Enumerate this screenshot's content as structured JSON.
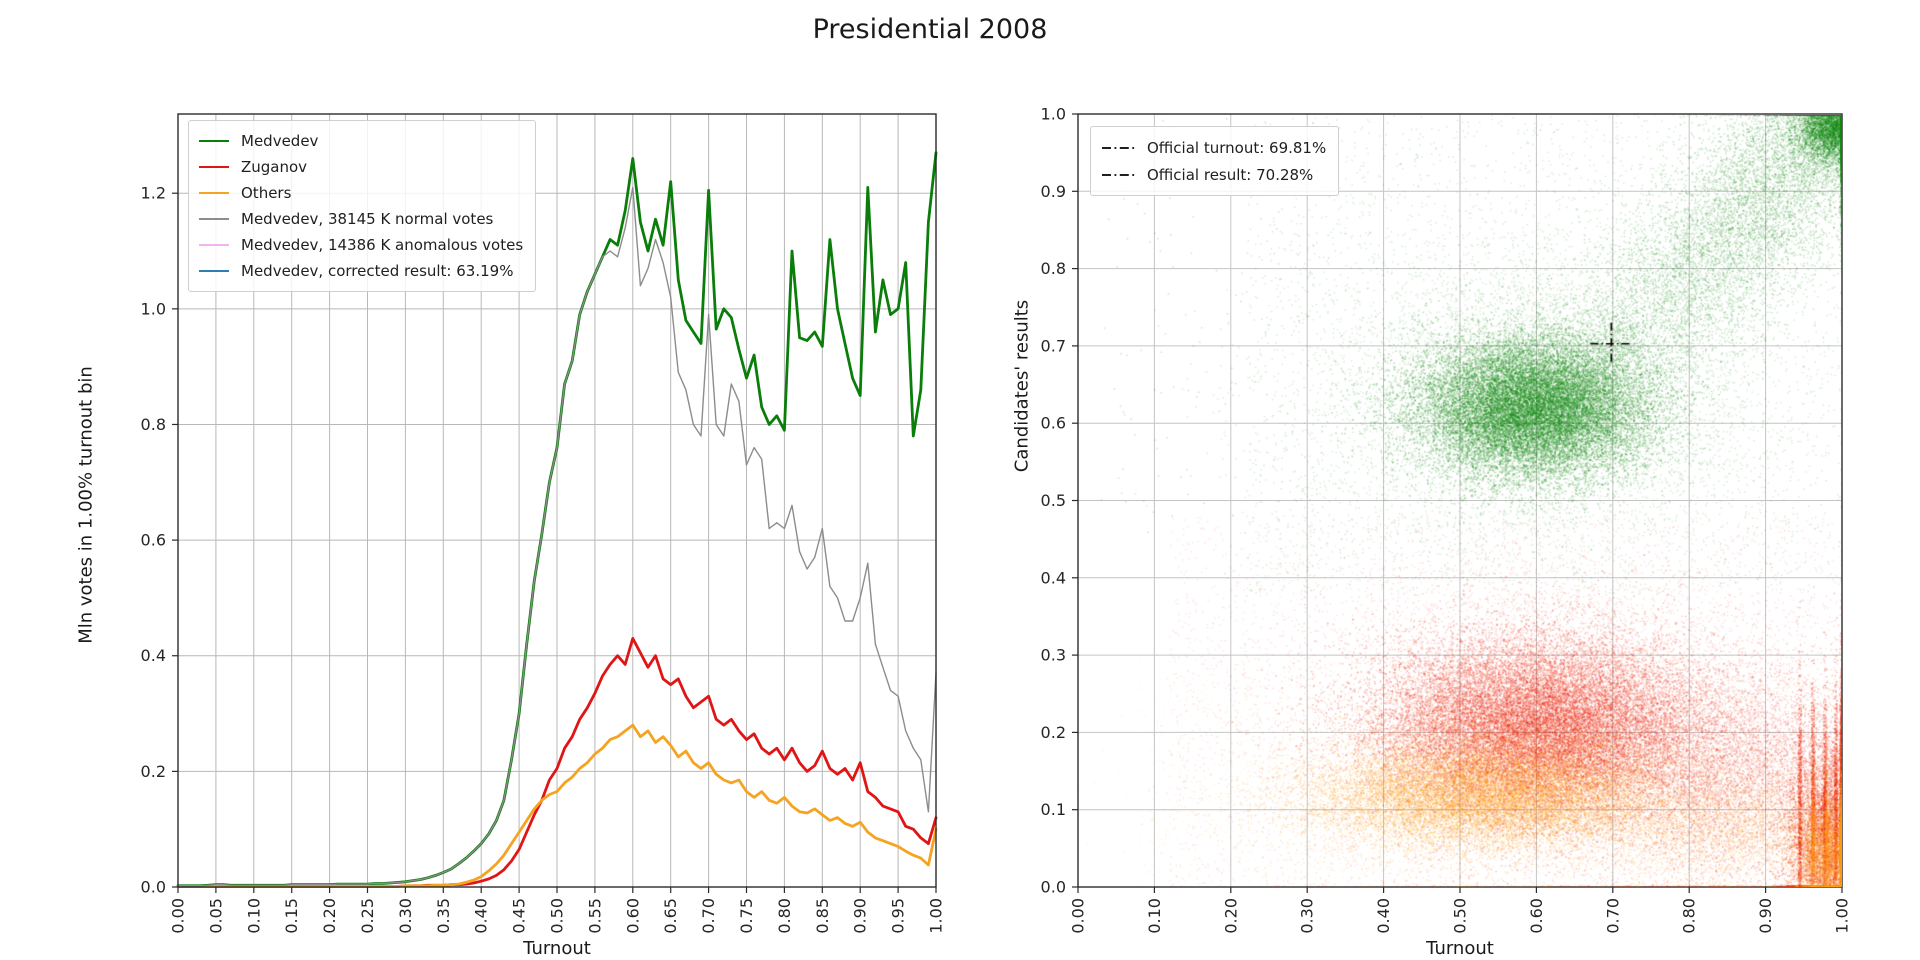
{
  "title": "Presidential 2008",
  "chart_data": [
    {
      "type": "line",
      "xlabel": "Turnout",
      "ylabel": "Mln votes in 1.00% turnout bin",
      "xlim": [
        0.0,
        1.0
      ],
      "ylim": [
        0.0,
        1.337
      ],
      "grid": true,
      "legend_position": "upper left",
      "x_step": 0.01,
      "x_start": 0.0,
      "x_tick_labels": [
        "0.00",
        "0.05",
        "0.10",
        "0.15",
        "0.20",
        "0.25",
        "0.30",
        "0.35",
        "0.40",
        "0.45",
        "0.50",
        "0.55",
        "0.60",
        "0.65",
        "0.70",
        "0.75",
        "0.80",
        "0.85",
        "0.90",
        "0.95",
        "1.00"
      ],
      "y_tick_labels": [
        "0.0",
        "0.2",
        "0.4",
        "0.6",
        "0.8",
        "1.0",
        "1.2"
      ],
      "series": [
        {
          "name": "Medvedev",
          "color": "#0a7d0a",
          "width": 2.8,
          "values": [
            0.002,
            0.002,
            0.002,
            0.002,
            0.003,
            0.004,
            0.004,
            0.003,
            0.003,
            0.003,
            0.003,
            0.003,
            0.003,
            0.003,
            0.003,
            0.004,
            0.004,
            0.004,
            0.004,
            0.004,
            0.004,
            0.005,
            0.005,
            0.005,
            0.005,
            0.005,
            0.006,
            0.006,
            0.007,
            0.008,
            0.009,
            0.011,
            0.013,
            0.016,
            0.02,
            0.025,
            0.031,
            0.04,
            0.05,
            0.062,
            0.075,
            0.092,
            0.115,
            0.15,
            0.22,
            0.3,
            0.42,
            0.53,
            0.61,
            0.7,
            0.76,
            0.87,
            0.91,
            0.99,
            1.03,
            1.06,
            1.09,
            1.12,
            1.11,
            1.17,
            1.26,
            1.15,
            1.1,
            1.155,
            1.11,
            1.22,
            1.05,
            0.98,
            0.96,
            0.94,
            1.205,
            0.965,
            1.0,
            0.985,
            0.93,
            0.88,
            0.92,
            0.83,
            0.8,
            0.815,
            0.79,
            1.1,
            0.95,
            0.945,
            0.96,
            0.935,
            1.12,
            1.0,
            0.94,
            0.88,
            0.85,
            1.21,
            0.96,
            1.05,
            0.99,
            1.0,
            1.08,
            0.78,
            0.86,
            1.15,
            1.27
          ]
        },
        {
          "name": "Zuganov",
          "color": "#e01515",
          "width": 2.8,
          "values": [
            0.001,
            0.001,
            0.001,
            0.001,
            0.001,
            0.001,
            0.001,
            0.001,
            0.001,
            0.001,
            0.001,
            0.001,
            0.001,
            0.001,
            0.001,
            0.001,
            0.001,
            0.001,
            0.001,
            0.001,
            0.001,
            0.001,
            0.001,
            0.001,
            0.001,
            0.001,
            0.001,
            0.001,
            0.001,
            0.001,
            0.002,
            0.002,
            0.002,
            0.003,
            0.003,
            0.003,
            0.004,
            0.004,
            0.005,
            0.007,
            0.01,
            0.014,
            0.02,
            0.03,
            0.045,
            0.065,
            0.095,
            0.125,
            0.15,
            0.185,
            0.205,
            0.24,
            0.26,
            0.29,
            0.31,
            0.335,
            0.365,
            0.385,
            0.4,
            0.385,
            0.43,
            0.405,
            0.38,
            0.4,
            0.36,
            0.35,
            0.36,
            0.33,
            0.31,
            0.32,
            0.33,
            0.29,
            0.28,
            0.29,
            0.27,
            0.255,
            0.265,
            0.24,
            0.23,
            0.24,
            0.22,
            0.24,
            0.215,
            0.2,
            0.21,
            0.235,
            0.205,
            0.195,
            0.205,
            0.185,
            0.215,
            0.165,
            0.155,
            0.14,
            0.135,
            0.13,
            0.105,
            0.1,
            0.085,
            0.075,
            0.12
          ]
        },
        {
          "name": "Others",
          "color": "#f5a321",
          "width": 2.8,
          "values": [
            0.001,
            0.001,
            0.001,
            0.001,
            0.001,
            0.001,
            0.001,
            0.001,
            0.001,
            0.001,
            0.001,
            0.001,
            0.001,
            0.001,
            0.001,
            0.001,
            0.001,
            0.001,
            0.001,
            0.001,
            0.001,
            0.001,
            0.001,
            0.001,
            0.001,
            0.001,
            0.001,
            0.001,
            0.001,
            0.001,
            0.002,
            0.002,
            0.002,
            0.002,
            0.003,
            0.003,
            0.004,
            0.005,
            0.008,
            0.012,
            0.018,
            0.028,
            0.04,
            0.055,
            0.075,
            0.095,
            0.115,
            0.135,
            0.15,
            0.16,
            0.165,
            0.18,
            0.19,
            0.205,
            0.215,
            0.23,
            0.24,
            0.255,
            0.26,
            0.27,
            0.28,
            0.26,
            0.27,
            0.25,
            0.26,
            0.245,
            0.225,
            0.235,
            0.215,
            0.205,
            0.215,
            0.195,
            0.185,
            0.18,
            0.185,
            0.165,
            0.155,
            0.165,
            0.15,
            0.145,
            0.155,
            0.14,
            0.13,
            0.128,
            0.135,
            0.125,
            0.115,
            0.12,
            0.11,
            0.105,
            0.112,
            0.095,
            0.085,
            0.08,
            0.075,
            0.07,
            0.062,
            0.055,
            0.05,
            0.038,
            0.1
          ]
        },
        {
          "name": "Medvedev, 38145 K normal votes",
          "color": "#8c8c8c",
          "width": 1.4,
          "values": [
            0.002,
            0.002,
            0.002,
            0.002,
            0.003,
            0.004,
            0.004,
            0.003,
            0.003,
            0.003,
            0.003,
            0.003,
            0.003,
            0.003,
            0.003,
            0.004,
            0.004,
            0.004,
            0.004,
            0.004,
            0.004,
            0.005,
            0.005,
            0.005,
            0.005,
            0.005,
            0.006,
            0.006,
            0.007,
            0.008,
            0.009,
            0.011,
            0.013,
            0.016,
            0.02,
            0.025,
            0.031,
            0.04,
            0.05,
            0.062,
            0.075,
            0.092,
            0.115,
            0.15,
            0.22,
            0.3,
            0.42,
            0.53,
            0.61,
            0.7,
            0.76,
            0.87,
            0.91,
            0.99,
            1.03,
            1.06,
            1.09,
            1.1,
            1.09,
            1.14,
            1.21,
            1.04,
            1.07,
            1.12,
            1.08,
            1.02,
            0.89,
            0.86,
            0.8,
            0.78,
            0.99,
            0.8,
            0.78,
            0.87,
            0.84,
            0.73,
            0.76,
            0.74,
            0.62,
            0.63,
            0.62,
            0.66,
            0.58,
            0.55,
            0.57,
            0.62,
            0.52,
            0.5,
            0.46,
            0.46,
            0.5,
            0.56,
            0.42,
            0.38,
            0.34,
            0.33,
            0.27,
            0.24,
            0.22,
            0.13,
            0.37
          ]
        }
      ],
      "legend_extra": [
        {
          "name": "Medvedev, 14386 K anomalous votes",
          "color": "#f0b4f0",
          "width": 1.4
        },
        {
          "name": "Medvedev, corrected result: 63.19%",
          "color": "#2e7eb3",
          "width": 1.8
        }
      ]
    },
    {
      "type": "scatter",
      "xlabel": "Turnout",
      "ylabel": "Candidates' results",
      "xlim": [
        0.0,
        1.0
      ],
      "ylim": [
        0.0,
        1.0
      ],
      "grid": true,
      "x_tick_labels": [
        "0.00",
        "0.10",
        "0.20",
        "0.30",
        "0.40",
        "0.50",
        "0.60",
        "0.70",
        "0.80",
        "0.90",
        "1.00"
      ],
      "y_tick_labels": [
        "0.0",
        "0.1",
        "0.2",
        "0.3",
        "0.4",
        "0.5",
        "0.6",
        "0.7",
        "0.8",
        "0.9",
        "1.0"
      ],
      "legend": [
        {
          "label": "Official turnout: 69.81%",
          "style": "dashdot",
          "color": "#000000"
        },
        {
          "label": "Official result: 70.28%",
          "style": "dashdot",
          "color": "#000000"
        }
      ],
      "crosshair": {
        "turnout": 0.6981,
        "result": 0.7028,
        "color": "#000000"
      },
      "clusters": [
        {
          "name": "medvedev-core",
          "color": "#118811",
          "alpha": 0.28,
          "size": 1.6,
          "kind": "gauss",
          "n": 18000,
          "cx": 0.595,
          "cy": 0.62,
          "sx": 0.075,
          "sy": 0.045
        },
        {
          "name": "medvedev-halo",
          "color": "#118811",
          "alpha": 0.16,
          "size": 1.5,
          "kind": "gauss",
          "n": 7000,
          "cx": 0.6,
          "cy": 0.64,
          "sx": 0.145,
          "sy": 0.1
        },
        {
          "name": "medvedev-arm",
          "color": "#118811",
          "alpha": 0.22,
          "size": 1.5,
          "kind": "diag",
          "n": 9000,
          "t0": 0.62,
          "r0": 0.6,
          "t1": 1.0,
          "r1": 1.0,
          "st": 0.055,
          "sr": 0.055,
          "pow": 0.55
        },
        {
          "name": "medvedev-corner",
          "color": "#118811",
          "alpha": 0.3,
          "size": 1.6,
          "kind": "gauss",
          "n": 4500,
          "cx": 0.99,
          "cy": 0.985,
          "sx": 0.025,
          "sy": 0.025
        },
        {
          "name": "medvedev-sparse",
          "color": "#118811",
          "alpha": 0.18,
          "size": 1.4,
          "kind": "uniform",
          "n": 2600,
          "t0": 0.22,
          "t1": 1.0,
          "r0": 0.38,
          "r1": 1.0
        },
        {
          "name": "medvedev-outliers",
          "color": "#118811",
          "alpha": 0.25,
          "size": 1.4,
          "kind": "uniform",
          "n": 130,
          "t0": 0.03,
          "t1": 0.35,
          "r0": 0.45,
          "r1": 1.0
        },
        {
          "name": "zuganov-core",
          "color": "#ea2408",
          "alpha": 0.26,
          "size": 1.6,
          "kind": "gauss",
          "n": 20000,
          "cx": 0.6,
          "cy": 0.205,
          "sx": 0.105,
          "sy": 0.058
        },
        {
          "name": "zuganov-halo",
          "color": "#ea2408",
          "alpha": 0.14,
          "size": 1.5,
          "kind": "gauss",
          "n": 8000,
          "cx": 0.62,
          "cy": 0.225,
          "sx": 0.17,
          "sy": 0.1
        },
        {
          "name": "zuganov-right",
          "color": "#ea2408",
          "alpha": 0.2,
          "size": 1.5,
          "kind": "gauss",
          "n": 6500,
          "cx": 0.86,
          "cy": 0.145,
          "sx": 0.1,
          "sy": 0.07
        },
        {
          "name": "zuganov-corner",
          "color": "#ea2408",
          "alpha": 0.3,
          "size": 1.6,
          "kind": "gauss",
          "n": 5000,
          "cx": 0.985,
          "cy": 0.06,
          "sx": 0.028,
          "sy": 0.06
        },
        {
          "name": "zuganov-streaks",
          "color": "#ea2408",
          "alpha": 0.3,
          "size": 1.5,
          "kind": "streaks",
          "n": 3500,
          "ts": [
            0.945,
            0.962,
            0.978,
            0.992,
            0.999
          ],
          "cy": 0.1,
          "sy": 0.075
        },
        {
          "name": "zuganov-sparse",
          "color": "#ea2408",
          "alpha": 0.13,
          "size": 1.4,
          "kind": "uniform",
          "n": 3200,
          "t0": 0.12,
          "t1": 1.0,
          "r0": 0.0,
          "r1": 0.48
        },
        {
          "name": "others-band",
          "color": "#ff9f0f",
          "alpha": 0.26,
          "size": 1.5,
          "kind": "gauss",
          "n": 12000,
          "cx": 0.53,
          "cy": 0.118,
          "sx": 0.115,
          "sy": 0.035
        },
        {
          "name": "others-halo",
          "color": "#ff9f0f",
          "alpha": 0.14,
          "size": 1.4,
          "kind": "gauss",
          "n": 4500,
          "cx": 0.56,
          "cy": 0.13,
          "sx": 0.17,
          "sy": 0.06
        },
        {
          "name": "others-right",
          "color": "#ff9f0f",
          "alpha": 0.2,
          "size": 1.4,
          "kind": "gauss",
          "n": 3000,
          "cx": 0.86,
          "cy": 0.075,
          "sx": 0.1,
          "sy": 0.04
        },
        {
          "name": "others-corner",
          "color": "#ff9f0f",
          "alpha": 0.3,
          "size": 1.5,
          "kind": "gauss",
          "n": 2600,
          "cx": 0.985,
          "cy": 0.04,
          "sx": 0.022,
          "sy": 0.035
        },
        {
          "name": "others-streaks",
          "color": "#ff9f0f",
          "alpha": 0.3,
          "size": 1.4,
          "kind": "streaks",
          "n": 1200,
          "ts": [
            0.962,
            0.98,
            0.999
          ],
          "cy": 0.06,
          "sy": 0.05
        },
        {
          "name": "others-sparse",
          "color": "#ff9f0f",
          "alpha": 0.13,
          "size": 1.3,
          "kind": "uniform",
          "n": 1600,
          "t0": 0.08,
          "t1": 1.0,
          "r0": 0.0,
          "r1": 0.3
        }
      ]
    }
  ],
  "style": {
    "grid_color_left": "#b8b8b8",
    "grid_color_right": "#c4c4c4",
    "spine_color": "#2b2b2b",
    "tick_label_color": "#262626"
  }
}
